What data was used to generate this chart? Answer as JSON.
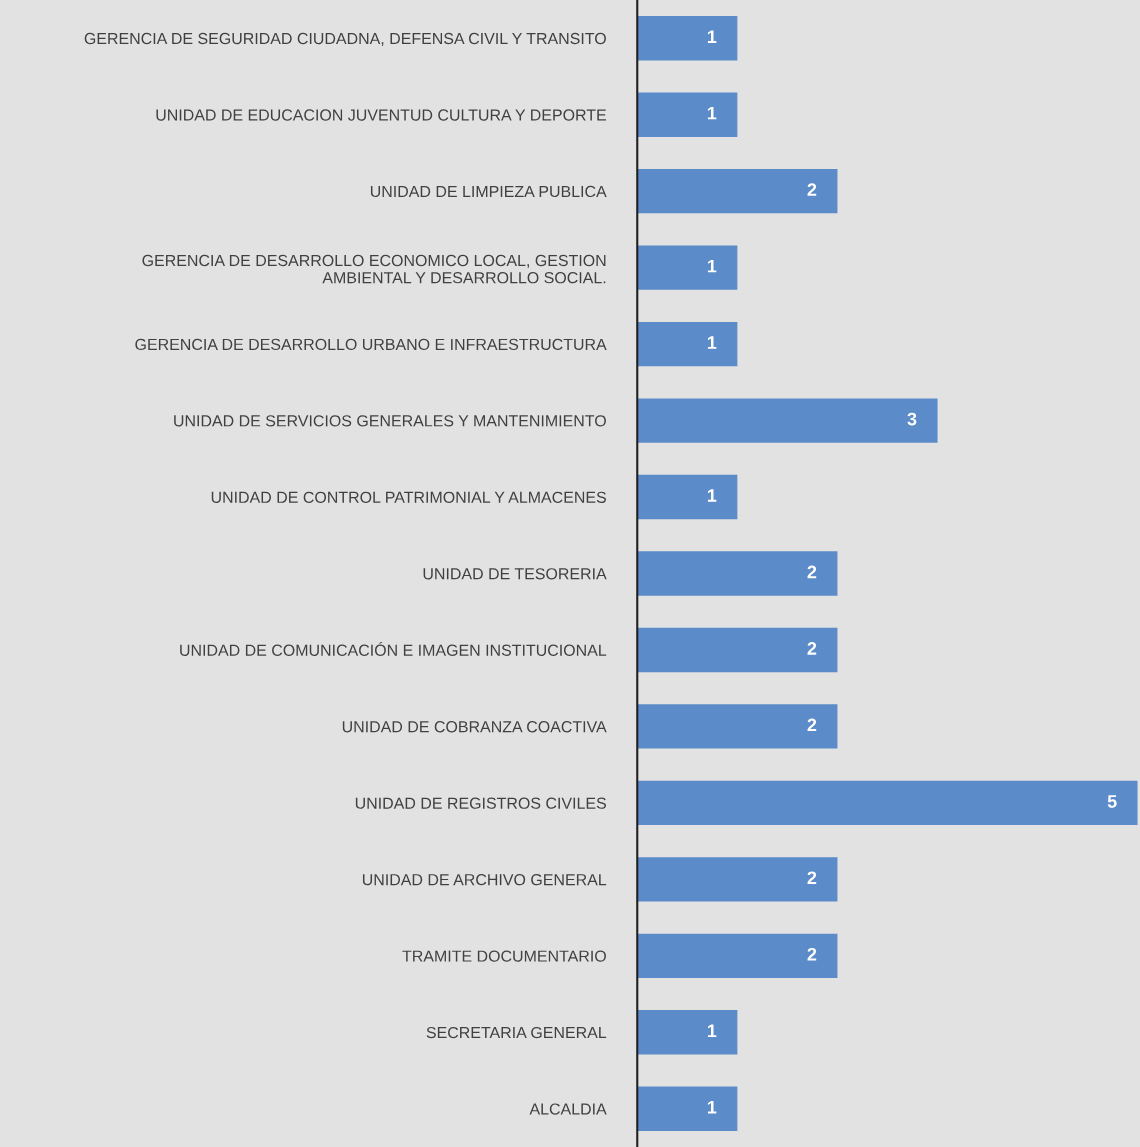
{
  "chart_data": {
    "type": "bar",
    "orientation": "horizontal",
    "categories": [
      "GERENCIA DE SEGURIDAD CIUDADNA, DEFENSA CIVIL Y TRANSITO",
      "UNIDAD DE EDUCACION JUVENTUD CULTURA Y DEPORTE",
      "UNIDAD DE LIMPIEZA PUBLICA",
      "GERENCIA DE DESARROLLO ECONOMICO LOCAL, GESTION\nAMBIENTAL Y DESARROLLO SOCIAL.",
      "GERENCIA DE DESARROLLO URBANO E INFRAESTRUCTURA",
      "UNIDAD DE SERVICIOS GENERALES Y MANTENIMIENTO",
      "UNIDAD DE CONTROL PATRIMONIAL Y ALMACENES",
      "UNIDAD DE TESORERIA",
      "UNIDAD DE COMUNICACIÓN E IMAGEN INSTITUCIONAL",
      "UNIDAD DE COBRANZA COACTIVA",
      "UNIDAD DE REGISTROS CIVILES",
      "UNIDAD DE ARCHIVO GENERAL",
      "TRAMITE DOCUMENTARIO",
      "SECRETARIA GENERAL",
      "ALCALDIA"
    ],
    "values": [
      1,
      1,
      2,
      1,
      1,
      3,
      1,
      2,
      2,
      2,
      5,
      2,
      2,
      1,
      1
    ],
    "color": "#5b8bc9",
    "xlim": [
      0,
      5
    ],
    "data_labels": true,
    "tick_labels": "y",
    "grid": false,
    "legend": false
  }
}
